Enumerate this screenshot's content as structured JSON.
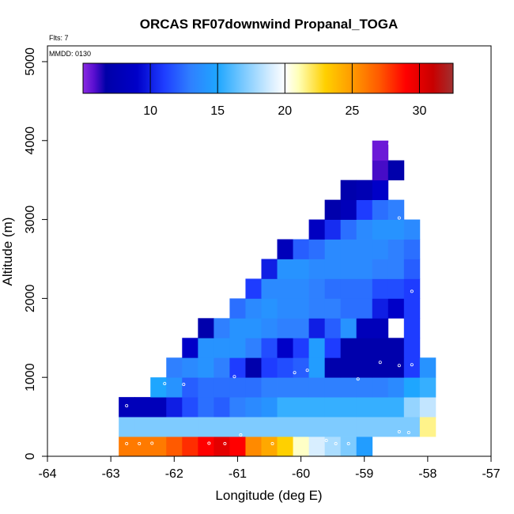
{
  "chart_data": {
    "type": "heatmap",
    "title": "ORCAS RF07downwind Propanal_TOGA",
    "xlabel": "Longitude (deg E)",
    "ylabel": "Altitude (m)",
    "flights_note": "Flts: 7",
    "date_note": "MMDD: 0130",
    "xlim": [
      -64,
      -57
    ],
    "ylim": [
      0,
      5200
    ],
    "xticks": [
      -64,
      -63,
      -62,
      -61,
      -60,
      -59,
      -58,
      -57
    ],
    "yticks": [
      0,
      1000,
      2000,
      3000,
      4000,
      5000
    ],
    "grid": false,
    "cell_width_deg": 0.25,
    "cell_height_m": 250,
    "colorbar": {
      "vmin": 5,
      "vmax": 32.5,
      "ticks": [
        10,
        15,
        20,
        25,
        30
      ],
      "stops": [
        {
          "value": 5.0,
          "color": "#8a2be2"
        },
        {
          "value": 5.8,
          "color": "#5a0fd0"
        },
        {
          "value": 6.7,
          "color": "#0000a8"
        },
        {
          "value": 9.0,
          "color": "#0000c8"
        },
        {
          "value": 11.0,
          "color": "#1e3cff"
        },
        {
          "value": 13.0,
          "color": "#2f80ff"
        },
        {
          "value": 15.0,
          "color": "#1ea6ff"
        },
        {
          "value": 17.0,
          "color": "#7ecbff"
        },
        {
          "value": 19.0,
          "color": "#d8eeff"
        },
        {
          "value": 20.0,
          "color": "#ffffff"
        },
        {
          "value": 21.0,
          "color": "#ffffb8"
        },
        {
          "value": 23.0,
          "color": "#ffd000"
        },
        {
          "value": 25.0,
          "color": "#ff9a00"
        },
        {
          "value": 27.0,
          "color": "#ff5a00"
        },
        {
          "value": 29.0,
          "color": "#ff0000"
        },
        {
          "value": 31.0,
          "color": "#c80000"
        },
        {
          "value": 32.5,
          "color": "#a03030"
        }
      ]
    },
    "rows": [
      {
        "alt": 125,
        "cells": [
          [
            -62.75,
            26
          ],
          [
            -62.5,
            26
          ],
          [
            -62.25,
            26
          ],
          [
            -62.0,
            27
          ],
          [
            -61.75,
            28
          ],
          [
            -61.5,
            29
          ],
          [
            -61.25,
            30
          ],
          [
            -61.0,
            29
          ],
          [
            -60.75,
            25.5
          ],
          [
            -60.5,
            24.5
          ],
          [
            -60.25,
            23
          ],
          [
            -60.0,
            20.8
          ],
          [
            -59.75,
            19
          ],
          [
            -59.5,
            18
          ],
          [
            -59.25,
            17
          ],
          [
            -59.0,
            14.5
          ]
        ]
      },
      {
        "alt": 375,
        "cells": [
          [
            -62.75,
            17
          ],
          [
            -62.5,
            17
          ],
          [
            -62.25,
            17
          ],
          [
            -62.0,
            17
          ],
          [
            -61.75,
            17
          ],
          [
            -61.5,
            17
          ],
          [
            -61.25,
            17
          ],
          [
            -61.0,
            17
          ],
          [
            -60.75,
            17
          ],
          [
            -60.5,
            17
          ],
          [
            -60.25,
            17
          ],
          [
            -60.0,
            17
          ],
          [
            -59.75,
            17
          ],
          [
            -59.5,
            17
          ],
          [
            -59.25,
            17
          ],
          [
            -59.0,
            17
          ],
          [
            -58.75,
            17
          ],
          [
            -58.5,
            17
          ],
          [
            -58.25,
            17
          ],
          [
            -58.0,
            21.5
          ]
        ]
      },
      {
        "alt": 625,
        "cells": [
          [
            -62.75,
            8
          ],
          [
            -62.5,
            8
          ],
          [
            -62.25,
            8
          ],
          [
            -62.0,
            10
          ],
          [
            -61.75,
            11.5
          ],
          [
            -61.5,
            12.5
          ],
          [
            -61.25,
            12
          ],
          [
            -61.0,
            13
          ],
          [
            -60.75,
            13.5
          ],
          [
            -60.5,
            14
          ],
          [
            -60.25,
            15.5
          ],
          [
            -60.0,
            15.5
          ],
          [
            -59.75,
            15.5
          ],
          [
            -59.5,
            15.5
          ],
          [
            -59.25,
            15.5
          ],
          [
            -59.0,
            15.5
          ],
          [
            -58.75,
            15.5
          ],
          [
            -58.5,
            15.5
          ],
          [
            -58.25,
            17.5
          ],
          [
            -58.0,
            18.5
          ]
        ]
      },
      {
        "alt": 875,
        "cells": [
          [
            -62.25,
            15
          ],
          [
            -62.0,
            14
          ],
          [
            -61.75,
            12
          ],
          [
            -61.5,
            12.5
          ],
          [
            -61.25,
            12.5
          ],
          [
            -61.0,
            12.5
          ],
          [
            -60.75,
            12.5
          ],
          [
            -60.5,
            13
          ],
          [
            -60.25,
            13
          ],
          [
            -60.0,
            13
          ],
          [
            -59.75,
            13
          ],
          [
            -59.5,
            13
          ],
          [
            -59.25,
            13
          ],
          [
            -59.0,
            13
          ],
          [
            -58.75,
            13
          ],
          [
            -58.5,
            13.5
          ],
          [
            -58.25,
            15
          ],
          [
            -58.0,
            15.5
          ]
        ]
      },
      {
        "alt": 1125,
        "cells": [
          [
            -62.0,
            13
          ],
          [
            -61.75,
            13.5
          ],
          [
            -61.5,
            14
          ],
          [
            -61.25,
            13
          ],
          [
            -61.0,
            11
          ],
          [
            -60.75,
            7
          ],
          [
            -60.5,
            11
          ],
          [
            -60.25,
            11.5
          ],
          [
            -60.0,
            12
          ],
          [
            -59.75,
            14.5
          ],
          [
            -59.5,
            7
          ],
          [
            -59.25,
            7
          ],
          [
            -59.0,
            7
          ],
          [
            -58.75,
            7
          ],
          [
            -58.5,
            7
          ],
          [
            -58.25,
            11
          ],
          [
            -58.0,
            14
          ]
        ]
      },
      {
        "alt": 1375,
        "cells": [
          [
            -61.75,
            9
          ],
          [
            -61.5,
            14
          ],
          [
            -61.25,
            14
          ],
          [
            -61.0,
            14
          ],
          [
            -60.75,
            13
          ],
          [
            -60.5,
            11.5
          ],
          [
            -60.25,
            9
          ],
          [
            -60.0,
            11
          ],
          [
            -59.75,
            14.5
          ],
          [
            -59.5,
            11
          ],
          [
            -59.25,
            7
          ],
          [
            -59.0,
            7
          ],
          [
            -58.75,
            7
          ],
          [
            -58.5,
            7
          ],
          [
            -58.25,
            11
          ]
        ]
      },
      {
        "alt": 1625,
        "cells": [
          [
            -61.5,
            7
          ],
          [
            -61.25,
            13
          ],
          [
            -61.0,
            14
          ],
          [
            -60.75,
            14
          ],
          [
            -60.5,
            13.5
          ],
          [
            -60.25,
            13
          ],
          [
            -60.0,
            13
          ],
          [
            -59.75,
            10
          ],
          [
            -59.5,
            12
          ],
          [
            -59.25,
            14
          ],
          [
            -59.0,
            8
          ],
          [
            -58.75,
            8
          ],
          [
            -58.25,
            11
          ]
        ]
      },
      {
        "alt": 1875,
        "cells": [
          [
            -61.0,
            12.5
          ],
          [
            -60.75,
            13.5
          ],
          [
            -60.5,
            14
          ],
          [
            -60.25,
            13.5
          ],
          [
            -60.0,
            13.5
          ],
          [
            -59.75,
            13
          ],
          [
            -59.5,
            13
          ],
          [
            -59.25,
            12.5
          ],
          [
            -59.0,
            12.5
          ],
          [
            -58.75,
            10
          ],
          [
            -58.5,
            9
          ],
          [
            -58.25,
            11
          ]
        ]
      },
      {
        "alt": 2125,
        "cells": [
          [
            -60.75,
            11
          ],
          [
            -60.5,
            13.5
          ],
          [
            -60.25,
            13.5
          ],
          [
            -60.0,
            13.5
          ],
          [
            -59.75,
            13
          ],
          [
            -59.5,
            12.5
          ],
          [
            -59.25,
            12.5
          ],
          [
            -59.0,
            12.5
          ],
          [
            -58.75,
            11.5
          ],
          [
            -58.5,
            11.5
          ],
          [
            -58.25,
            11
          ]
        ]
      },
      {
        "alt": 2375,
        "cells": [
          [
            -60.5,
            10
          ],
          [
            -60.25,
            14
          ],
          [
            -60.0,
            14
          ],
          [
            -59.75,
            13.5
          ],
          [
            -59.5,
            13.5
          ],
          [
            -59.25,
            13.5
          ],
          [
            -59.0,
            13.5
          ],
          [
            -58.75,
            13
          ],
          [
            -58.5,
            13
          ],
          [
            -58.25,
            12
          ]
        ]
      },
      {
        "alt": 2625,
        "cells": [
          [
            -60.25,
            8
          ],
          [
            -60.0,
            12
          ],
          [
            -59.75,
            12.5
          ],
          [
            -59.5,
            13.5
          ],
          [
            -59.25,
            13.5
          ],
          [
            -59.0,
            13.5
          ],
          [
            -58.75,
            13.5
          ],
          [
            -58.5,
            13
          ],
          [
            -58.25,
            12.5
          ]
        ]
      },
      {
        "alt": 2875,
        "cells": [
          [
            -59.75,
            8.5
          ],
          [
            -59.5,
            10.5
          ],
          [
            -59.25,
            12.5
          ],
          [
            -59.0,
            13.5
          ],
          [
            -58.75,
            14
          ],
          [
            -58.5,
            14
          ],
          [
            -58.25,
            13.5
          ]
        ]
      },
      {
        "alt": 3125,
        "cells": [
          [
            -59.5,
            7
          ],
          [
            -59.25,
            8
          ],
          [
            -59.0,
            11
          ],
          [
            -58.75,
            12.5
          ],
          [
            -58.5,
            13
          ]
        ]
      },
      {
        "alt": 3375,
        "cells": [
          [
            -59.25,
            7
          ],
          [
            -59.0,
            7.5
          ],
          [
            -58.75,
            9
          ]
        ]
      },
      {
        "alt": 3625,
        "cells": [
          [
            -58.75,
            6
          ],
          [
            -58.5,
            7
          ]
        ]
      },
      {
        "alt": 3875,
        "cells": [
          [
            -58.75,
            5.5
          ]
        ]
      }
    ],
    "markers": [
      [
        -62.75,
        160
      ],
      [
        -62.55,
        160
      ],
      [
        -62.35,
        165
      ],
      [
        -61.45,
        165
      ],
      [
        -61.2,
        160
      ],
      [
        -60.95,
        270
      ],
      [
        -60.45,
        160
      ],
      [
        -59.6,
        200
      ],
      [
        -59.45,
        160
      ],
      [
        -59.25,
        160
      ],
      [
        -62.75,
        640
      ],
      [
        -62.15,
        920
      ],
      [
        -61.85,
        910
      ],
      [
        -61.05,
        1010
      ],
      [
        -60.1,
        1060
      ],
      [
        -59.9,
        1090
      ],
      [
        -59.1,
        980
      ],
      [
        -58.75,
        1190
      ],
      [
        -58.45,
        1150
      ],
      [
        -58.25,
        1160
      ],
      [
        -58.45,
        310
      ],
      [
        -58.3,
        300
      ],
      [
        -58.25,
        2090
      ],
      [
        -58.45,
        3020
      ],
      [
        -58.6,
        3960
      ]
    ]
  }
}
